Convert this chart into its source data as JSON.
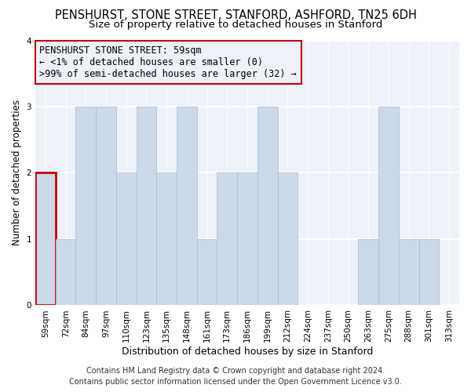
{
  "title": "PENSHURST, STONE STREET, STANFORD, ASHFORD, TN25 6DH",
  "subtitle": "Size of property relative to detached houses in Stanford",
  "xlabel": "Distribution of detached houses by size in Stanford",
  "ylabel": "Number of detached properties",
  "categories": [
    "59sqm",
    "72sqm",
    "84sqm",
    "97sqm",
    "110sqm",
    "123sqm",
    "135sqm",
    "148sqm",
    "161sqm",
    "173sqm",
    "186sqm",
    "199sqm",
    "212sqm",
    "224sqm",
    "237sqm",
    "250sqm",
    "263sqm",
    "275sqm",
    "288sqm",
    "301sqm",
    "313sqm"
  ],
  "values": [
    2,
    1,
    3,
    3,
    2,
    3,
    2,
    3,
    1,
    2,
    2,
    3,
    2,
    0,
    0,
    0,
    1,
    3,
    1,
    1,
    0
  ],
  "bar_color": "#ccd9e8",
  "bar_edge_color": "#aabbd0",
  "highlight_index": 0,
  "highlight_edge_color": "#cc0000",
  "ylim": [
    0,
    4
  ],
  "yticks": [
    0,
    1,
    2,
    3,
    4
  ],
  "annotation_line1": "PENSHURST STONE STREET: 59sqm",
  "annotation_line2": "← <1% of detached houses are smaller (0)",
  "annotation_line3": ">99% of semi-detached houses are larger (32) →",
  "annotation_box_edge_color": "#cc0000",
  "footer_line1": "Contains HM Land Registry data © Crown copyright and database right 2024.",
  "footer_line2": "Contains public sector information licensed under the Open Government Licence v3.0.",
  "background_color": "#ffffff",
  "plot_bg_color": "#eef2f8",
  "grid_color": "#ffffff",
  "title_fontsize": 10.5,
  "subtitle_fontsize": 9.5,
  "xlabel_fontsize": 9,
  "ylabel_fontsize": 8.5,
  "tick_fontsize": 7.5,
  "annotation_fontsize": 8.5,
  "footer_fontsize": 7
}
